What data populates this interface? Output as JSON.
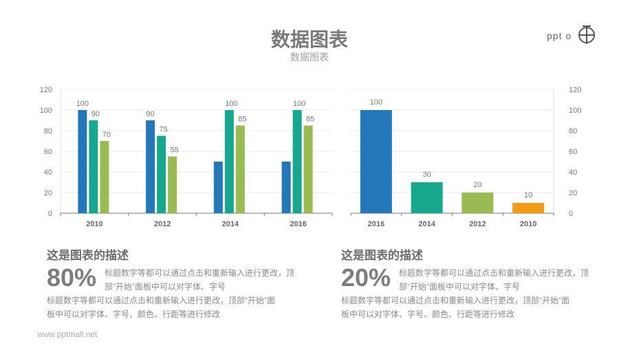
{
  "header": {
    "title": "数据图表",
    "subtitle": "数据图表",
    "logo_text": "PPT"
  },
  "colors": {
    "blue": "#2477b8",
    "teal": "#17a78f",
    "green": "#9aba52",
    "orange": "#f29b13"
  },
  "chart_data": [
    {
      "type": "bar",
      "categories": [
        "2010",
        "2012",
        "2014",
        "2016"
      ],
      "series": [
        {
          "values": [
            100,
            90,
            50,
            50
          ],
          "color": "#2477b8",
          "labels": [
            "100",
            "90",
            "",
            ""
          ]
        },
        {
          "values": [
            90,
            75,
            100,
            100
          ],
          "color": "#17a78f",
          "labels": [
            "90",
            "75",
            "100",
            "100"
          ]
        },
        {
          "values": [
            70,
            55,
            85,
            85
          ],
          "color": "#9aba52",
          "labels": [
            "70",
            "55",
            "85",
            "85"
          ]
        }
      ],
      "ylim": [
        0,
        120
      ],
      "yticks": [
        "0",
        "20",
        "40",
        "60",
        "80",
        "100",
        "120"
      ],
      "grid": true,
      "yaxis": "left"
    },
    {
      "type": "bar",
      "categories": [
        "2016",
        "2014",
        "2012",
        "2010"
      ],
      "values": [
        100,
        30,
        20,
        10
      ],
      "colors": [
        "#2477b8",
        "#17a78f",
        "#9aba52",
        "#f29b13"
      ],
      "ylim": [
        0,
        120
      ],
      "yticks": [
        "0",
        "20",
        "40",
        "60",
        "80",
        "100",
        "120"
      ],
      "grid": true,
      "yaxis": "right"
    }
  ],
  "descriptions": [
    {
      "heading": "这是图表的描述",
      "percent": "80%",
      "text1": "标题数字等都可以通过点击和重新输入进行更改，顶部“开始”面板中可以对字体、字号",
      "text2": "标题数字等都可以通过点击和重新输入进行更改，顶部“开始”面板中可以对字体、字号、颜色、行距等进行修改"
    },
    {
      "heading": "这是图表的描述",
      "percent": "20%",
      "text1": "标题数字等都可以通过点击和重新输入进行更改，顶部“开始”面板中可以对字体、字号",
      "text2": "标题数字等都可以通过点击和重新输入进行更改，顶部“开始”面板中可以对字体、字号、颜色、行距等进行修改"
    }
  ],
  "footer": {
    "url": "www.pptmall.net"
  }
}
